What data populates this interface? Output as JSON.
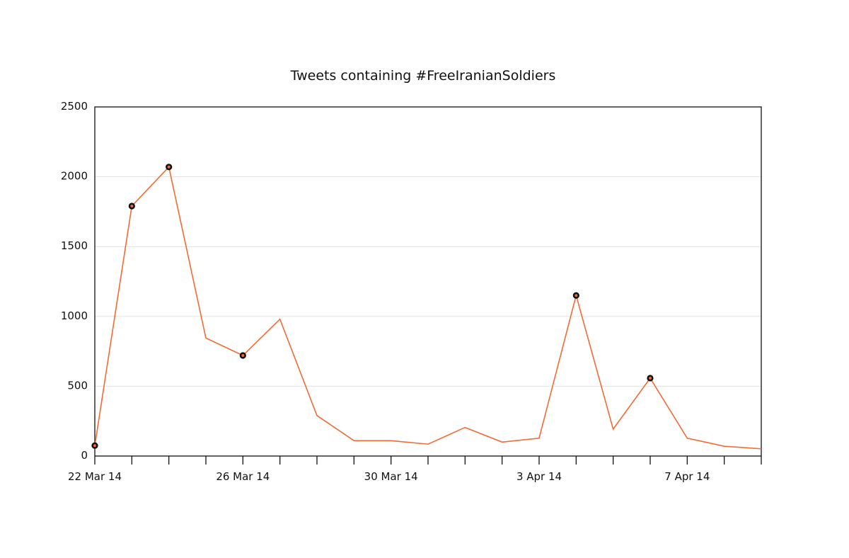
{
  "chart_data": {
    "type": "line",
    "title": "Tweets containing #FreeIranianSoldiers",
    "xlabel": "",
    "ylabel": "",
    "x": [
      "2014-03-22",
      "2014-03-23",
      "2014-03-24",
      "2014-03-25",
      "2014-03-26",
      "2014-03-27",
      "2014-03-28",
      "2014-03-29",
      "2014-03-30",
      "2014-03-31",
      "2014-04-01",
      "2014-04-02",
      "2014-04-03",
      "2014-04-04",
      "2014-04-05",
      "2014-04-06",
      "2014-04-07",
      "2014-04-08",
      "2014-04-09"
    ],
    "x_tick_labels": [
      {
        "date": "2014-03-22",
        "label": "22 Mar 14"
      },
      {
        "date": "2014-03-26",
        "label": "26 Mar 14"
      },
      {
        "date": "2014-03-30",
        "label": "30 Mar 14"
      },
      {
        "date": "2014-04-03",
        "label": "3 Apr 14"
      },
      {
        "date": "2014-04-07",
        "label": "7 Apr 14"
      }
    ],
    "y_ticks": [
      0,
      500,
      1000,
      1500,
      2000,
      2500
    ],
    "ylim": [
      0,
      2500
    ],
    "grid": "horizontal",
    "legend": "none",
    "series": [
      {
        "values": [
          75,
          1790,
          2070,
          845,
          720,
          980,
          290,
          110,
          110,
          85,
          205,
          100,
          128,
          1150,
          193,
          558,
          128,
          70,
          52
        ],
        "highlighted_dates": [
          "2014-03-22",
          "2014-03-23",
          "2014-03-24",
          "2014-03-26",
          "2014-04-04",
          "2014-04-06"
        ],
        "color": "#f26a35"
      }
    ],
    "marker_colors": {
      "ring": "#111111",
      "center": "#f26a35"
    }
  }
}
